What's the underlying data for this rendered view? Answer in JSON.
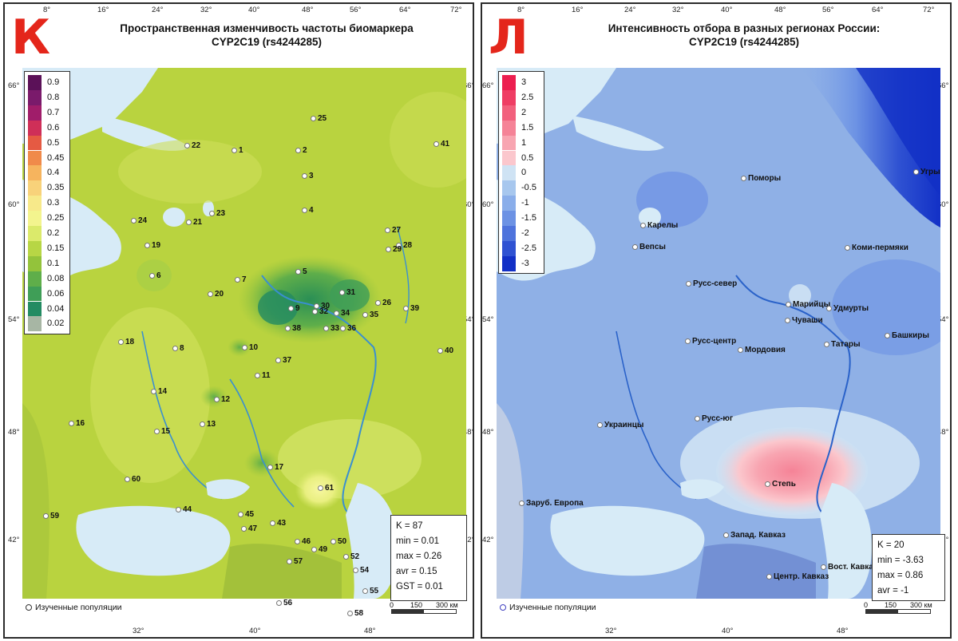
{
  "panels": [
    {
      "letter": "К",
      "title_line1": "Пространственная изменчивость частоты биомаркера",
      "title_line2": "CYP2C19 (rs4244285)",
      "lon_top": [
        "8°",
        "16°",
        "24°",
        "32°",
        "40°",
        "48°",
        "56°",
        "64°",
        "72°"
      ],
      "lon_bottom": [
        "32°",
        "40°",
        "48°"
      ],
      "lat_left": [
        "66°",
        "60°",
        "54°",
        "48°",
        "42°"
      ],
      "lat_right": [
        "66°",
        "60°",
        "54°",
        "48°",
        "42°"
      ],
      "legend": [
        {
          "label": "0.9",
          "color": "#5b1158"
        },
        {
          "label": "0.8",
          "color": "#7a1a6b"
        },
        {
          "label": "0.7",
          "color": "#a01d6a"
        },
        {
          "label": "0.6",
          "color": "#cf2f58"
        },
        {
          "label": "0.5",
          "color": "#e55a43"
        },
        {
          "label": "0.45",
          "color": "#f08a4a"
        },
        {
          "label": "0.4",
          "color": "#f6b45e"
        },
        {
          "label": "0.35",
          "color": "#f8d27a"
        },
        {
          "label": "0.3",
          "color": "#f7e98a"
        },
        {
          "label": "0.25",
          "color": "#f3f48e"
        },
        {
          "label": "0.2",
          "color": "#dbea6b"
        },
        {
          "label": "0.15",
          "color": "#b7d645"
        },
        {
          "label": "0.1",
          "color": "#93c33b"
        },
        {
          "label": "0.08",
          "color": "#5fae4a"
        },
        {
          "label": "0.06",
          "color": "#3f9e57"
        },
        {
          "label": "0.04",
          "color": "#238b62"
        },
        {
          "label": "0.02",
          "color": "#a7b6a4"
        }
      ],
      "populations": [
        "1",
        "2",
        "3",
        "4",
        "5",
        "6",
        "7",
        "8",
        "9",
        "10",
        "11",
        "12",
        "13",
        "14",
        "15",
        "16",
        "17",
        "18",
        "19",
        "20",
        "21",
        "22",
        "23",
        "24",
        "25",
        "26",
        "27",
        "28",
        "29",
        "30",
        "31",
        "32",
        "33",
        "34",
        "35",
        "36",
        "37",
        "38",
        "39",
        "40",
        "41",
        "43",
        "44",
        "45",
        "46",
        "47",
        "49",
        "50",
        "52",
        "54",
        "55",
        "56",
        "57",
        "58",
        "59",
        "60",
        "61"
      ],
      "stats": [
        "K = 87",
        "min = 0.01",
        "max = 0.26",
        "avr = 0.15",
        "GST = 0.01"
      ],
      "footer": "Изученные популяции",
      "scale": {
        "zero": "0",
        "mid": "150",
        "end": "300 км"
      }
    },
    {
      "letter": "Л",
      "title_line1": "Интенсивность отбора в разных регионах России:",
      "title_line2": "CYP2C19 (rs4244285)",
      "lon_top": [
        "8°",
        "16°",
        "24°",
        "32°",
        "40°",
        "48°",
        "56°",
        "64°",
        "72°"
      ],
      "lon_bottom": [
        "32°",
        "40°",
        "48°"
      ],
      "lat_left": [
        "66°",
        "60°",
        "54°",
        "48°",
        "42°"
      ],
      "lat_right": [
        "66°",
        "60°",
        "54°",
        "48°",
        "42°"
      ],
      "legend": [
        {
          "label": "3",
          "color": "#ec1e4f"
        },
        {
          "label": "2.5",
          "color": "#ef3d64"
        },
        {
          "label": "2",
          "color": "#f2607d"
        },
        {
          "label": "1.5",
          "color": "#f58397"
        },
        {
          "label": "1",
          "color": "#f8a5b1"
        },
        {
          "label": "0.5",
          "color": "#fbc7cd"
        },
        {
          "label": "0",
          "color": "#cfe3f4"
        },
        {
          "label": "-0.5",
          "color": "#a7c7ee"
        },
        {
          "label": "-1",
          "color": "#8aaeea"
        },
        {
          "label": "-1.5",
          "color": "#6c92e4"
        },
        {
          "label": "-2",
          "color": "#4e73dc"
        },
        {
          "label": "-2.5",
          "color": "#2f52d2"
        },
        {
          "label": "-3",
          "color": "#1230c6"
        }
      ],
      "populations": [
        "Поморы",
        "Карелы",
        "Вепсы",
        "Коми-пермяки",
        "Русс-север",
        "Марийцы",
        "Удмурты",
        "Чуваши",
        "Башкиры",
        "Русс-центр",
        "Мордовия",
        "Татары",
        "Украинцы",
        "Русс-юг",
        "Степь",
        "Заруб. Европа",
        "Запад. Кавказ",
        "Вост. Кавказ",
        "Центр. Кавказ",
        "Угры"
      ],
      "stats": [
        "K = 20",
        "min = -3.63",
        "max = 0.86",
        "avr = -1"
      ],
      "footer": "Изученные популяции",
      "scale": {
        "zero": "0",
        "mid": "150",
        "end": "300 км"
      }
    }
  ],
  "colors": {
    "sea": "#d7ebf7",
    "land_left": "#b9d33f",
    "land_right": "#8fb0e6",
    "title_letter": "#e4261b"
  }
}
